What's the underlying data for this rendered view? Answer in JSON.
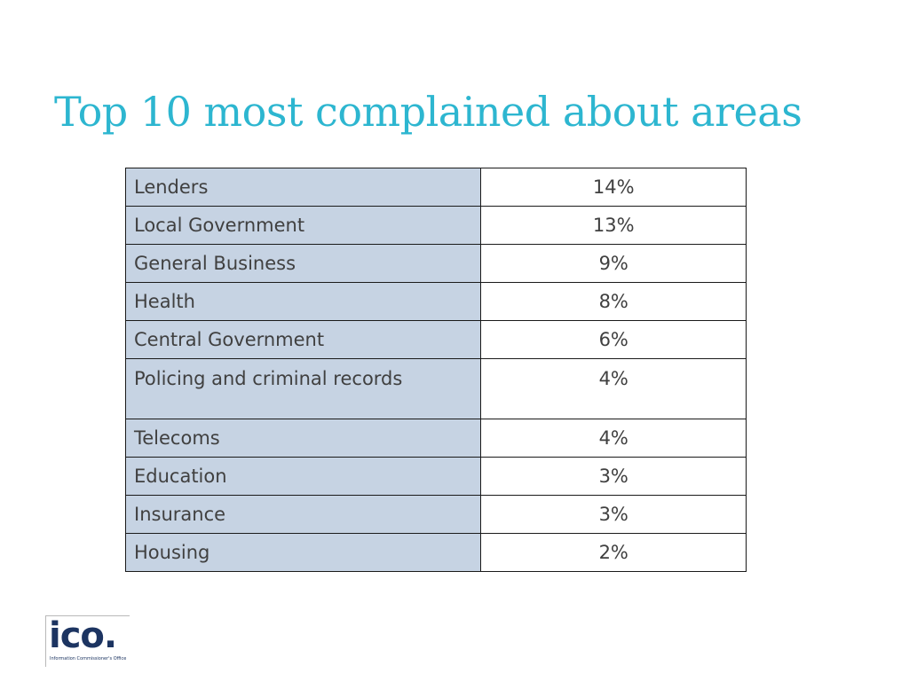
{
  "title": "Top 10 most complained about areas",
  "table": {
    "rows": [
      {
        "area": "Lenders",
        "percent": "14%"
      },
      {
        "area": "Local Government",
        "percent": "13%"
      },
      {
        "area": "General Business",
        "percent": "9%"
      },
      {
        "area": "Health",
        "percent": "8%"
      },
      {
        "area": "Central Government",
        "percent": "6%"
      },
      {
        "area": "Policing and criminal records",
        "percent": "4%"
      },
      {
        "area": "Telecoms",
        "percent": "4%"
      },
      {
        "area": "Education",
        "percent": "3%"
      },
      {
        "area": "Insurance",
        "percent": "3%"
      },
      {
        "area": "Housing",
        "percent": "2%"
      }
    ]
  },
  "logo": {
    "mark": "ico.",
    "subtitle": "Information Commissioner's Office"
  },
  "colors": {
    "title": "#2db6d0",
    "label_cell_fill": "#c6d3e3",
    "logo": "#1c3461"
  }
}
